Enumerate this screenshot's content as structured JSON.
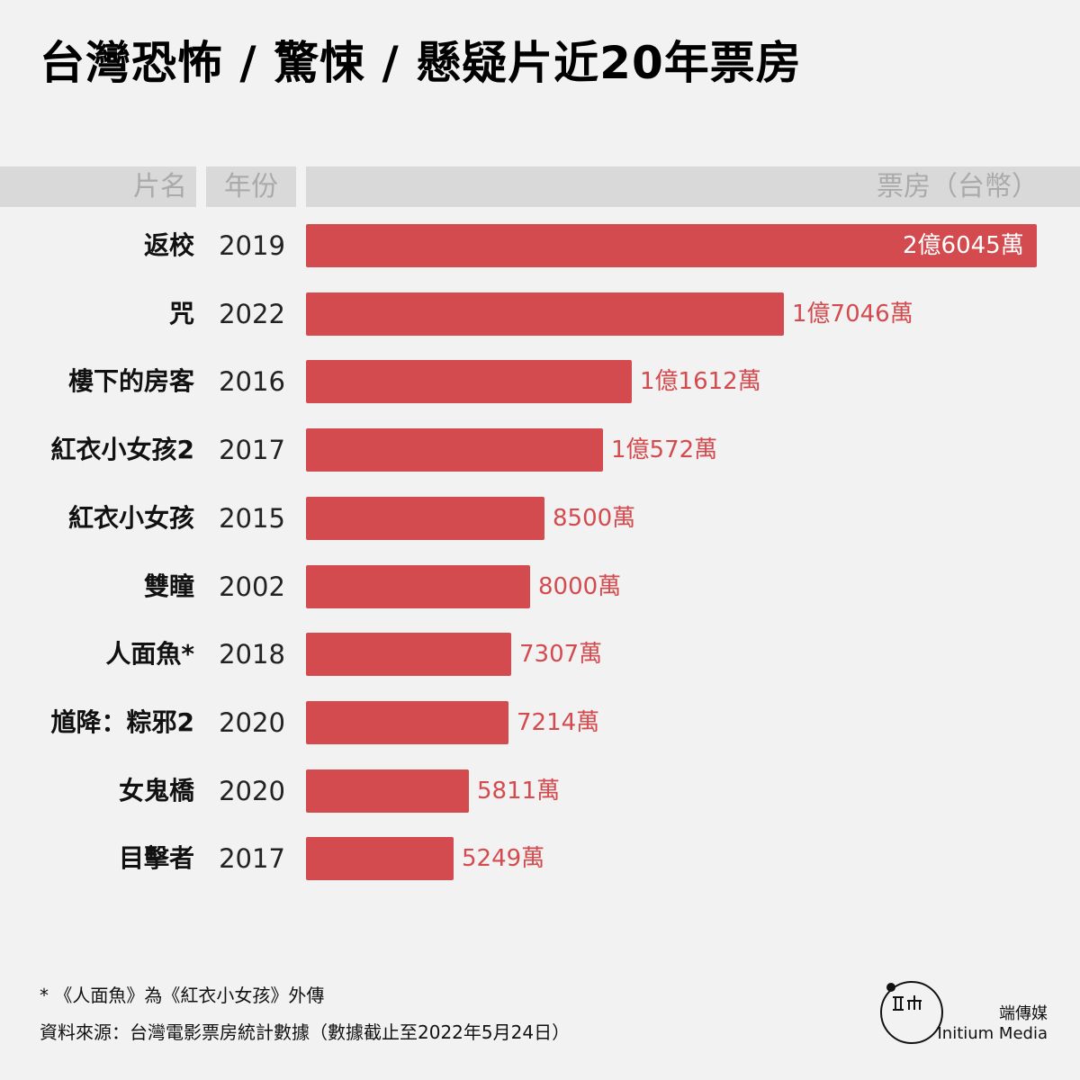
{
  "title": "台灣恐怖 / 驚悚 / 懸疑片近20年票房",
  "header": {
    "name_label": "片名",
    "year_label": "年份",
    "box_label": "票房（台幣）"
  },
  "footnote": "* 《人面魚》為《紅衣小女孩》外傳",
  "source": "資料來源：台灣電影票房統計數據（數據截止至2022年5月24日）",
  "brand": {
    "cn": "端傳媒",
    "en": "Initium Media"
  },
  "colors": {
    "bar": "#d44b4f",
    "background": "#f2f2f2",
    "header_bg": "#d9d9d9",
    "header_text": "#aaaaaa"
  },
  "chart_data": {
    "type": "bar",
    "orientation": "horizontal",
    "title": "台灣恐怖 / 驚悚 / 懸疑片近20年票房",
    "xlabel": "票房（台幣）",
    "unit": "萬 TWD",
    "categories": [
      "返校",
      "咒",
      "樓下的房客",
      "紅衣小女孩2",
      "紅衣小女孩",
      "雙瞳",
      "人面魚*",
      "馗降：粽邪2",
      "女鬼橋",
      "目擊者"
    ],
    "years": [
      "2019",
      "2022",
      "2016",
      "2017",
      "2015",
      "2002",
      "2018",
      "2020",
      "2020",
      "2017"
    ],
    "values": [
      26045,
      17046,
      11612,
      10572,
      8500,
      8000,
      7307,
      7214,
      5811,
      5249
    ],
    "value_labels": [
      "2億6045萬",
      "1億7046萬",
      "1億1612萬",
      "1億572萬",
      "8500萬",
      "8000萬",
      "7307萬",
      "7214萬",
      "5811萬",
      "5249萬"
    ],
    "xlim": [
      0,
      26045
    ],
    "grid": false,
    "legend": false
  }
}
